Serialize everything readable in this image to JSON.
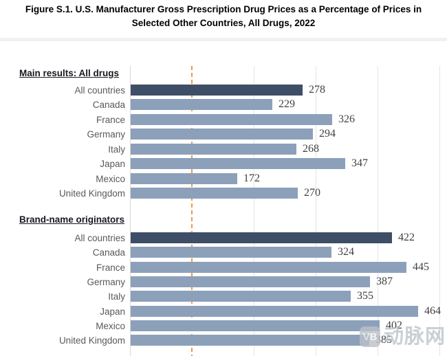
{
  "title": "Figure S.1. U.S. Manufacturer Gross Prescription Drug Prices as a Percentage of Prices in Selected Other Countries, All Drugs, 2022",
  "chart_data": {
    "type": "bar",
    "orientation": "horizontal",
    "title": "Figure S.1. U.S. Manufacturer Gross Prescription Drug Prices as a Percentage of Prices in Selected Other Countries, All Drugs, 2022",
    "xlim": [
      0,
      500
    ],
    "gridline_step": 100,
    "reference_line_value": 100,
    "grid": true,
    "sections": [
      {
        "heading": "Main results: All drugs",
        "categories": [
          "All countries",
          "Canada",
          "France",
          "Germany",
          "Italy",
          "Japan",
          "Mexico",
          "United Kingdom"
        ],
        "values": [
          278,
          229,
          326,
          294,
          268,
          347,
          172,
          270
        ],
        "highlighted_category": "All countries"
      },
      {
        "heading": "Brand-name originators",
        "categories": [
          "All countries",
          "Canada",
          "France",
          "Germany",
          "Italy",
          "Japan",
          "Mexico",
          "United Kingdom"
        ],
        "values": [
          422,
          324,
          445,
          387,
          355,
          464,
          402,
          385
        ],
        "highlighted_category": "All countries"
      }
    ]
  },
  "colors": {
    "highlight_bar": "#3f4e67",
    "bar": "#8ca0ba",
    "reference_line": "#ee9a49",
    "gridline": "#e4e4e6",
    "category_text": "#595959",
    "value_text": "#3f3f3f"
  },
  "watermark": {
    "badge": "VB",
    "text": "动脉网"
  }
}
